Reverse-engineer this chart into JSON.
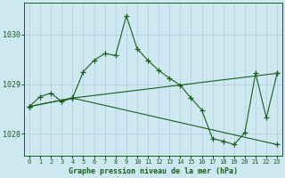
{
  "title": "Graphe pression niveau de la mer (hPa)",
  "bg_color": "#cde8f0",
  "grid_color": "#b0ccd8",
  "line_color": "#1a5e1a",
  "xlim": [
    -0.5,
    23.5
  ],
  "ylim": [
    1027.55,
    1030.65
  ],
  "yticks": [
    1028,
    1029,
    1030
  ],
  "xticks": [
    0,
    1,
    2,
    3,
    4,
    5,
    6,
    7,
    8,
    9,
    10,
    11,
    12,
    13,
    14,
    15,
    16,
    17,
    18,
    19,
    20,
    21,
    22,
    23
  ],
  "series1_x": [
    0,
    1,
    2,
    3,
    4,
    5,
    6,
    7,
    8,
    9,
    10,
    11,
    12,
    13,
    14,
    15,
    16,
    17,
    18,
    19,
    20,
    21,
    22,
    23
  ],
  "series1_y": [
    1028.55,
    1028.75,
    1028.82,
    1028.65,
    1028.72,
    1029.25,
    1029.48,
    1029.62,
    1029.58,
    1030.38,
    1029.72,
    1029.48,
    1029.28,
    1029.12,
    1028.98,
    1028.72,
    1028.48,
    1027.9,
    1027.85,
    1027.78,
    1028.02,
    1029.22,
    1028.32,
    1029.22
  ],
  "series2_x": [
    0,
    4,
    23
  ],
  "series2_y": [
    1028.55,
    1028.72,
    1029.22
  ],
  "series3_x": [
    0,
    4,
    23
  ],
  "series3_y": [
    1028.55,
    1028.72,
    1027.78
  ]
}
